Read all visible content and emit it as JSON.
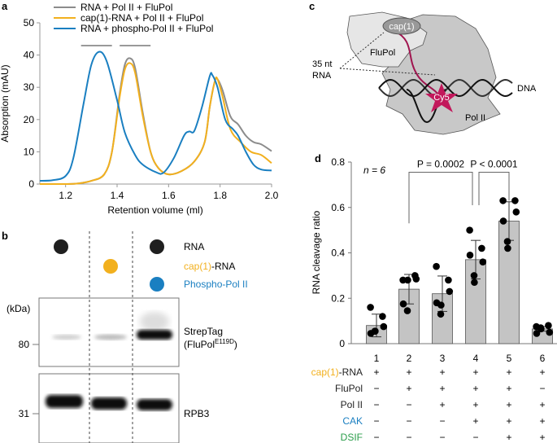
{
  "panel_labels": {
    "a": "a",
    "b": "b",
    "c": "c",
    "d": "d"
  },
  "chart_data": [
    {
      "type": "line",
      "panel": "a",
      "xlabel": "Retention volume (ml)",
      "ylabel": "Absorption (mAU)",
      "xlim": [
        1.1,
        2.0
      ],
      "ylim": [
        0,
        50
      ],
      "xticks": [
        "1.2",
        "1.4",
        "1.6",
        "1.8",
        "2.0"
      ],
      "yticks": [
        "0",
        "10",
        "20",
        "30",
        "40",
        "50"
      ],
      "legend_position": "top",
      "fraction_bars": [
        [
          1.26,
          1.38
        ],
        [
          1.41,
          1.53
        ]
      ],
      "series": [
        {
          "name": "RNA + Pol II + FluPol",
          "color": "#8c8c8c",
          "x": [
            1.1,
            1.2,
            1.25,
            1.3,
            1.35,
            1.38,
            1.41,
            1.43,
            1.45,
            1.47,
            1.5,
            1.53,
            1.56,
            1.6,
            1.65,
            1.7,
            1.74,
            1.76,
            1.78,
            1.79,
            1.81,
            1.84,
            1.87,
            1.9,
            1.93,
            1.96,
            2.0
          ],
          "y": [
            0,
            0,
            0.2,
            1,
            3,
            10,
            28,
            37,
            39,
            36,
            22,
            10,
            5,
            3,
            4,
            7,
            13,
            24,
            32,
            32.5,
            29,
            21,
            18.5,
            15,
            13,
            12.3,
            10.2
          ]
        },
        {
          "name": "cap(1)-RNA + Pol II + FluPol",
          "color": "#f2b01e",
          "x": [
            1.1,
            1.2,
            1.25,
            1.3,
            1.35,
            1.38,
            1.41,
            1.43,
            1.45,
            1.47,
            1.5,
            1.53,
            1.56,
            1.6,
            1.65,
            1.7,
            1.74,
            1.76,
            1.78,
            1.79,
            1.81,
            1.84,
            1.88,
            1.92,
            1.96,
            2.0
          ],
          "y": [
            0,
            0,
            0.2,
            1,
            3,
            10,
            27,
            35.5,
            37.5,
            34.5,
            21,
            10,
            5,
            3,
            4,
            7,
            13,
            24,
            32,
            32.5,
            27,
            17,
            13,
            10,
            9,
            6.5
          ]
        },
        {
          "name": "RNA + phospho-Pol II + FluPol",
          "color": "#1a7fc1",
          "x": [
            1.1,
            1.15,
            1.2,
            1.23,
            1.27,
            1.3,
            1.33,
            1.36,
            1.4,
            1.43,
            1.47,
            1.5,
            1.55,
            1.58,
            1.62,
            1.66,
            1.68,
            1.7,
            1.73,
            1.76,
            1.77,
            1.79,
            1.82,
            1.85,
            1.87,
            1.9,
            1.93,
            1.96,
            2.0
          ],
          "y": [
            1,
            1.2,
            2.5,
            8,
            25,
            37,
            41,
            38,
            26,
            16,
            9,
            6,
            3.7,
            3.5,
            8,
            15,
            16.3,
            16.5,
            24,
            33.5,
            33.8,
            30,
            20,
            17,
            15,
            10,
            6,
            4.5,
            4.2
          ]
        }
      ]
    },
    {
      "type": "bar",
      "panel": "d",
      "ylabel": "RNA cleavage ratio",
      "ylim": [
        0,
        0.8
      ],
      "yticks": [
        "0",
        "0.2",
        "0.4",
        "0.6",
        "0.8"
      ],
      "categories": [
        "1",
        "2",
        "3",
        "4",
        "5",
        "6"
      ],
      "values": [
        0.08,
        0.24,
        0.22,
        0.37,
        0.54,
        0.065
      ],
      "errors": [
        0.05,
        0.065,
        0.078,
        0.085,
        0.085,
        0.01
      ],
      "points": [
        [
          0.16,
          0.12,
          0.075,
          0.045,
          0.055,
          0.055
        ],
        [
          0.28,
          0.3,
          0.285,
          0.175,
          0.145,
          0.28
        ],
        [
          0.34,
          0.28,
          0.23,
          0.18,
          0.13,
          0.17
        ],
        [
          0.5,
          0.42,
          0.36,
          0.39,
          0.3,
          0.27
        ],
        [
          0.63,
          0.63,
          0.58,
          0.54,
          0.45,
          0.42
        ],
        [
          0.075,
          0.08,
          0.05,
          0.045,
          0.07,
          0.065
        ]
      ],
      "n_label": "n = 6",
      "comparisons": [
        {
          "from": "2",
          "to": "4",
          "label": "P = 0.0002"
        },
        {
          "from": "4",
          "to": "5",
          "label": "P < 0.0001"
        }
      ],
      "conditions": [
        {
          "name": "cap(1)-RNA",
          "prefix": "cap(1)",
          "suffix": "-RNA",
          "color": "#f2b01e",
          "signs": [
            "+",
            "+",
            "+",
            "+",
            "+",
            "+"
          ]
        },
        {
          "name": "FluPol",
          "color": "#222222",
          "signs": [
            "−",
            "+",
            "+",
            "+",
            "+",
            "−"
          ]
        },
        {
          "name": "Pol II",
          "color": "#222222",
          "signs": [
            "−",
            "−",
            "+",
            "+",
            "+",
            "+"
          ]
        },
        {
          "name": "CAK",
          "color": "#1a7fc1",
          "signs": [
            "−",
            "−",
            "−",
            "+",
            "+",
            "+"
          ]
        },
        {
          "name": "DSIF",
          "color": "#2a9d4a",
          "signs": [
            "−",
            "−",
            "−",
            "−",
            "+",
            "+"
          ]
        }
      ]
    }
  ],
  "blot": {
    "legend": [
      {
        "label": "RNA",
        "color": "#1f1f1f"
      },
      {
        "label_prefix": "cap(1)",
        "label_suffix": "-RNA",
        "color": "#f2b01e"
      },
      {
        "label": "Phospho-Pol II",
        "color": "#1a7fc1"
      }
    ],
    "kda_label": "(kDa)",
    "markers": [
      "80",
      "31"
    ],
    "band_labels": {
      "top_line1": "StrepTag",
      "top_line2_base": "(FluPol",
      "top_line2_sup": "E119D",
      "top_line2_end": ")",
      "bottom": "RPB3"
    }
  },
  "schematic": {
    "cap_label": "cap(1)",
    "flupol_label": "FluPol",
    "rna_label_1": "35 nt",
    "rna_label_2": "RNA",
    "dna_label": "DNA",
    "cy5_label": "Cy5",
    "pol2_label": "Pol II",
    "colors": {
      "flupol": "#e6e6e6",
      "pol2": "#c8c8c8",
      "rna": "#a0154f",
      "cy5": "#c2185b"
    }
  }
}
